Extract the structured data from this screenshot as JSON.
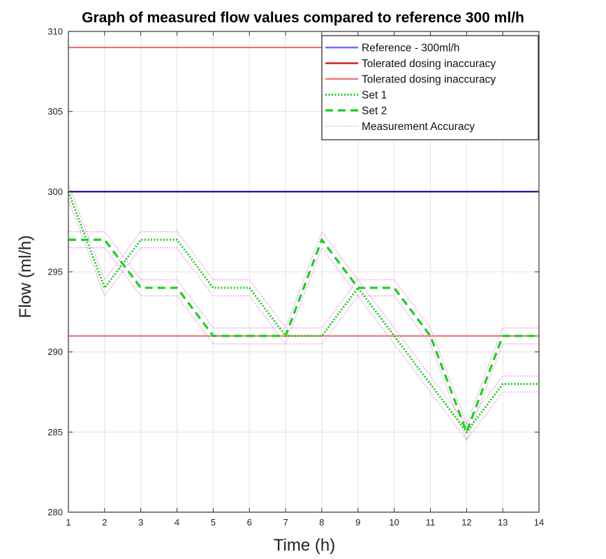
{
  "chart_data": {
    "type": "line",
    "title": "Graph of measured flow values compared to reference 300 ml/h",
    "xlabel": "Time (h)",
    "ylabel": "Flow (ml/h)",
    "xlim": [
      1,
      14
    ],
    "ylim": [
      280,
      310
    ],
    "xticks": [
      1,
      2,
      3,
      4,
      5,
      6,
      7,
      8,
      9,
      10,
      11,
      12,
      13,
      14
    ],
    "yticks": [
      280,
      285,
      290,
      295,
      300,
      305,
      310
    ],
    "grid": true,
    "legend_position": "top-right",
    "x": [
      1,
      2,
      3,
      4,
      5,
      6,
      7,
      8,
      9,
      10,
      11,
      12,
      13,
      14
    ],
    "series": [
      {
        "name": "Reference - 300ml/h",
        "style": "solid",
        "color": "#00008b",
        "legend_color": "#6b6bff",
        "values": [
          300,
          300,
          300,
          300,
          300,
          300,
          300,
          300,
          300,
          300,
          300,
          300,
          300,
          300
        ]
      },
      {
        "name": "Tolerated dosing inaccuracy",
        "style": "solid",
        "color": "#ef6f6f",
        "legend_color": "#d42020",
        "values": [
          309,
          309,
          309,
          309,
          309,
          309,
          309,
          309,
          309,
          309,
          309,
          309,
          309,
          309
        ]
      },
      {
        "name": "Tolerated dosing inaccuracy",
        "style": "solid",
        "color": "#ef7a7a",
        "legend_color": "#ef7a7a",
        "values": [
          291,
          291,
          291,
          291,
          291,
          291,
          291,
          291,
          291,
          291,
          291,
          291,
          291,
          291
        ]
      },
      {
        "name": "Set 1",
        "style": "dotted",
        "color": "#19d219",
        "values": [
          300,
          294,
          297,
          297,
          294,
          294,
          291,
          291,
          294,
          291,
          288,
          285,
          288,
          288
        ]
      },
      {
        "name": "Set 2",
        "style": "dashed",
        "color": "#19d219",
        "values": [
          297,
          297,
          294,
          294,
          291,
          291,
          291,
          297,
          294,
          294,
          291,
          285,
          291,
          291
        ]
      },
      {
        "name": "Measurement Accuracy",
        "style": "dotted-thin",
        "color": "#e07ae0",
        "band_of": [
          "Set 1",
          "Set 2"
        ],
        "offset": 0.5
      }
    ]
  }
}
